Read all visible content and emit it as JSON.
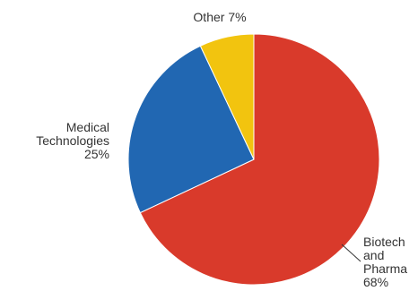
{
  "chart_data": {
    "type": "pie",
    "slices": [
      {
        "name": "Biotech and Pharma",
        "value": 68,
        "color": "#d93a2b",
        "label_lines": [
          "Biotech",
          "and",
          "Pharma",
          "68%"
        ]
      },
      {
        "name": "Medical Technologies",
        "value": 25,
        "color": "#2167b2",
        "label_lines": [
          "Medical",
          "Technologies",
          "25%"
        ]
      },
      {
        "name": "Other",
        "value": 7,
        "color": "#f2c40f",
        "label_lines": [
          "Other 7%"
        ]
      }
    ]
  }
}
